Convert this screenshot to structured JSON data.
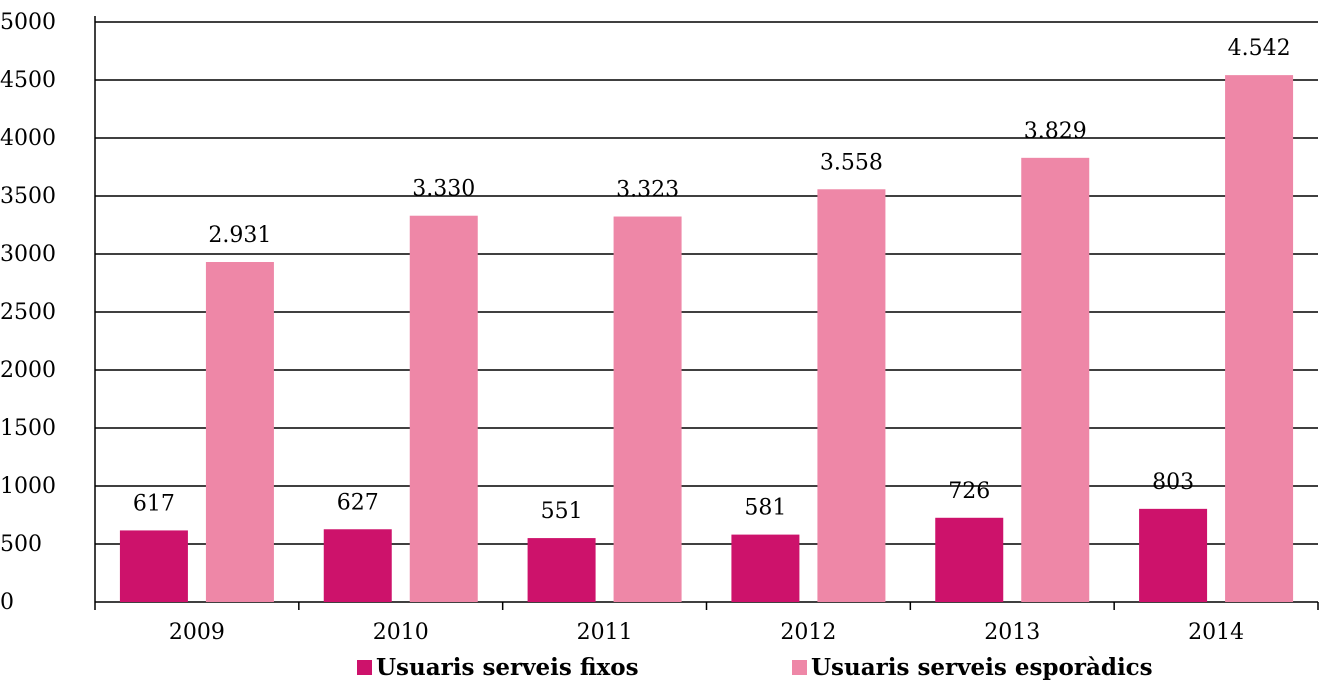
{
  "chart_data": {
    "type": "bar",
    "title": "",
    "xlabel": "",
    "ylabel": "",
    "categories": [
      "2009",
      "2010",
      "2011",
      "2012",
      "2013",
      "2014"
    ],
    "series": [
      {
        "name": "Usuaris serveis fixos",
        "values": [
          617,
          627,
          551,
          581,
          726,
          803
        ],
        "labels": [
          "617",
          "627",
          "551",
          "581",
          "726",
          "803"
        ],
        "color": "#cd126b"
      },
      {
        "name": "Usuaris serveis esporàdics",
        "values": [
          2931,
          3330,
          3323,
          3558,
          3829,
          4542
        ],
        "labels": [
          "2.931",
          "3.330",
          "3.323",
          "3.558",
          "3.829",
          "4.542"
        ],
        "color": "#ee87a7"
      }
    ],
    "ylim": [
      0,
      5000
    ],
    "yticks": [
      "0",
      "500",
      "1000",
      "1500",
      "2000",
      "2500",
      "3000",
      "3500",
      "4000",
      "4500",
      "5000"
    ],
    "grid": true,
    "legend": "bottom"
  }
}
